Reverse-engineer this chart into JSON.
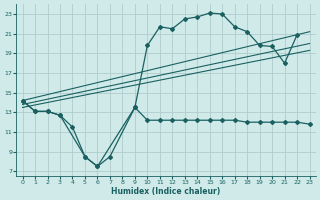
{
  "bg_color": "#d0eaea",
  "grid_color": "#b0cccc",
  "line_color": "#1a6060",
  "xlabel": "Humidex (Indice chaleur)",
  "xlim": [
    -0.5,
    23.5
  ],
  "ylim": [
    6.5,
    24.0
  ],
  "yticks": [
    7,
    9,
    11,
    13,
    15,
    17,
    19,
    21,
    23
  ],
  "xticks": [
    0,
    1,
    2,
    3,
    4,
    5,
    6,
    7,
    8,
    9,
    10,
    11,
    12,
    13,
    14,
    15,
    16,
    17,
    18,
    19,
    20,
    21,
    22,
    23
  ],
  "curve_main_x": [
    0,
    1,
    2,
    3,
    5,
    6,
    9,
    10,
    11,
    12,
    13,
    14,
    15,
    16,
    17,
    18,
    19,
    20,
    21,
    22
  ],
  "curve_main_y": [
    14.2,
    13.1,
    13.1,
    12.7,
    8.5,
    7.5,
    13.5,
    19.8,
    21.7,
    21.5,
    22.5,
    22.7,
    23.1,
    23.0,
    21.7,
    21.2,
    19.8,
    19.7,
    18.0,
    20.9
  ],
  "curve_low_x": [
    0,
    1,
    2,
    3,
    4,
    5,
    6,
    7,
    9,
    10,
    11,
    12,
    13,
    14,
    15,
    16,
    17,
    18,
    19,
    20,
    21,
    22,
    23
  ],
  "curve_low_y": [
    14.2,
    13.1,
    13.1,
    12.7,
    11.5,
    8.5,
    7.5,
    8.5,
    13.5,
    12.2,
    12.2,
    12.2,
    12.2,
    12.2,
    12.2,
    12.2,
    12.2,
    12.0,
    12.0,
    12.0,
    12.0,
    12.0,
    11.8
  ],
  "diag_lines": [
    {
      "x": [
        0,
        23
      ],
      "y": [
        14.2,
        21.2
      ]
    },
    {
      "x": [
        0,
        23
      ],
      "y": [
        13.8,
        20.0
      ]
    },
    {
      "x": [
        0,
        23
      ],
      "y": [
        13.5,
        19.3
      ]
    }
  ]
}
